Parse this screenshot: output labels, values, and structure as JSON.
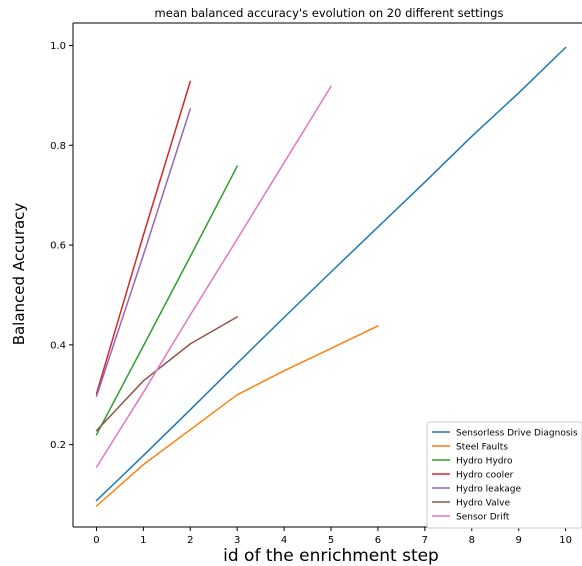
{
  "chart_data": {
    "type": "line",
    "title": "mean balanced accuracy's evolution on 20 different settings",
    "xlabel": "id of the enrichment step",
    "ylabel": "Balanced Accuracy",
    "xlim": [
      -0.5,
      10.35
    ],
    "ylim": [
      0.035,
      1.045
    ],
    "xticks": [
      0,
      1,
      2,
      3,
      4,
      5,
      6,
      7,
      8,
      9,
      10
    ],
    "yticks": [
      0.2,
      0.4,
      0.6,
      0.8,
      1.0
    ],
    "ytick_labels": [
      "0.2",
      "0.4",
      "0.6",
      "0.8",
      "1.0"
    ],
    "grid": false,
    "legend_position": "lower-right",
    "series": [
      {
        "name": "Sensorless Drive Diagnosis",
        "color": "#1f77b4",
        "x": [
          0,
          1,
          2,
          3,
          4,
          5,
          6,
          7,
          8,
          9,
          10
        ],
        "y": [
          0.088,
          0.178,
          0.27,
          0.363,
          0.455,
          0.546,
          0.636,
          0.726,
          0.818,
          0.905,
          0.996
        ]
      },
      {
        "name": "Steel Faults",
        "color": "#ff7f0e",
        "x": [
          0,
          1,
          2,
          3,
          4,
          5,
          6
        ],
        "y": [
          0.077,
          0.16,
          0.23,
          0.3,
          0.348,
          0.393,
          0.438
        ]
      },
      {
        "name": "Hydro Hydro",
        "color": "#2ca02c",
        "x": [
          0,
          1,
          2,
          3
        ],
        "y": [
          0.22,
          0.398,
          0.577,
          0.758
        ]
      },
      {
        "name": "Hydro cooler",
        "color": "#d62728",
        "x": [
          0,
          1,
          2
        ],
        "y": [
          0.302,
          0.62,
          0.928
        ]
      },
      {
        "name": "Hydro leakage",
        "color": "#9467bd",
        "x": [
          0,
          1,
          2
        ],
        "y": [
          0.297,
          0.58,
          0.873
        ]
      },
      {
        "name": "Hydro Valve",
        "color": "#8c564b",
        "x": [
          0,
          1,
          2,
          3
        ],
        "y": [
          0.228,
          0.328,
          0.402,
          0.456
        ]
      },
      {
        "name": "Sensor Drift",
        "color": "#e377c2",
        "x": [
          0,
          1,
          2,
          3,
          4,
          5
        ],
        "y": [
          0.155,
          0.305,
          0.46,
          0.612,
          0.765,
          0.918
        ]
      }
    ]
  }
}
